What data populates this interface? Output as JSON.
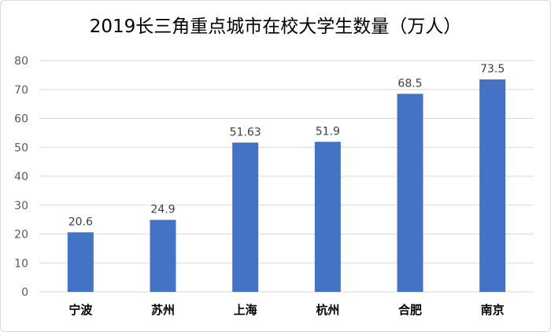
{
  "chart_data": {
    "type": "bar",
    "title": "2019长三角重点城市在校大学生数量（万人）",
    "categories": [
      "宁波",
      "苏州",
      "上海",
      "杭州",
      "合肥",
      "南京"
    ],
    "values": [
      20.6,
      24.9,
      51.63,
      51.9,
      68.5,
      73.5
    ],
    "data_labels": [
      "20.6",
      "24.9",
      "51.63",
      "51.9",
      "68.5",
      "73.5"
    ],
    "yticks": [
      "0",
      "10",
      "20",
      "30",
      "40",
      "50",
      "60",
      "70",
      "80"
    ],
    "ylim": [
      0,
      80
    ],
    "xlabel": "",
    "ylabel": "",
    "grid": true,
    "legend": "none",
    "bar_color": "#4472c4",
    "grid_color": "#d9d9d9"
  }
}
